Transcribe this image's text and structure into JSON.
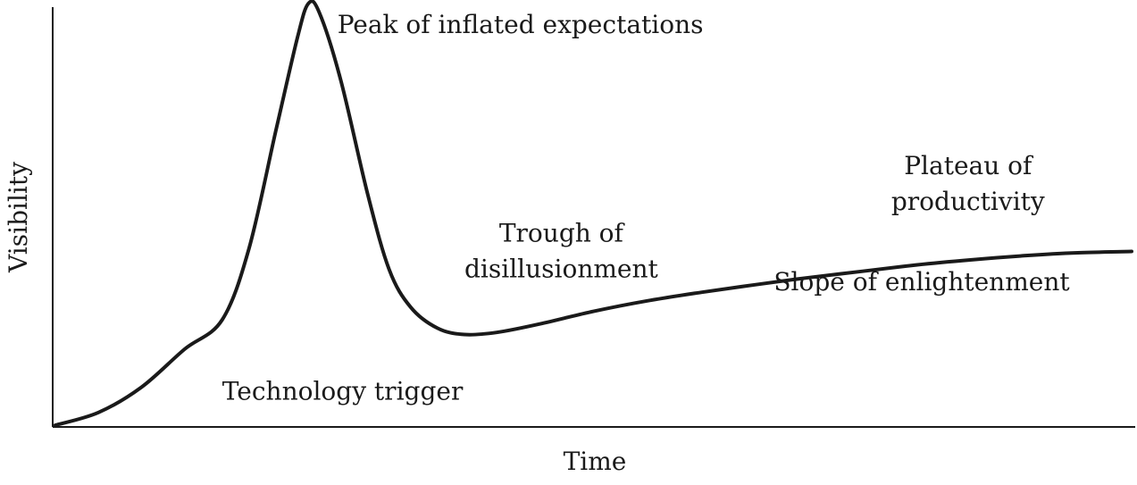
{
  "chart_data": {
    "type": "line",
    "title": "",
    "xlabel": "Time",
    "ylabel": "Visibility",
    "grid": false,
    "legend": "none",
    "line_color": "#1a1a1a",
    "x_range": [
      0,
      100
    ],
    "y_range": [
      0,
      100
    ],
    "series": [
      {
        "points": [
          [
            0,
            0
          ],
          [
            4,
            3
          ],
          [
            8,
            9
          ],
          [
            12,
            18
          ],
          [
            15.5,
            25
          ],
          [
            18,
            42
          ],
          [
            20.5,
            70
          ],
          [
            22.5,
            92
          ],
          [
            23.5,
            100
          ],
          [
            24.5,
            98
          ],
          [
            26.5,
            82
          ],
          [
            29,
            55
          ],
          [
            31,
            37
          ],
          [
            33,
            28
          ],
          [
            35.5,
            23
          ],
          [
            38,
            21.5
          ],
          [
            41,
            22
          ],
          [
            45,
            24
          ],
          [
            50,
            27
          ],
          [
            55,
            29.5
          ],
          [
            60,
            31.5
          ],
          [
            65,
            33.3
          ],
          [
            70,
            35
          ],
          [
            75,
            36.5
          ],
          [
            80,
            38
          ],
          [
            85,
            39.2
          ],
          [
            90,
            40.2
          ],
          [
            95,
            40.9
          ],
          [
            100,
            41.2
          ]
        ]
      }
    ],
    "annotations": [
      {
        "id": "technology-trigger",
        "lines": [
          "Technology trigger"
        ],
        "x": 15.5,
        "y": 6,
        "anchor": "start"
      },
      {
        "id": "peak-of-inflated-expectations",
        "lines": [
          "Peak of inflated expectations"
        ],
        "x": 26.2,
        "y": 93,
        "anchor": "start"
      },
      {
        "id": "trough-of-disillusionment",
        "lines": [
          "Trough of",
          "disillusionment"
        ],
        "x": 47,
        "y": 43.5,
        "anchor": "middle"
      },
      {
        "id": "slope-of-enlightenment",
        "lines": [
          "Slope of enlightenment"
        ],
        "x": 80.5,
        "y": 32,
        "anchor": "middle"
      },
      {
        "id": "plateau-of-productivity",
        "lines": [
          "Plateau of",
          "productivity"
        ],
        "x": 84.8,
        "y": 59.5,
        "anchor": "middle"
      }
    ]
  }
}
